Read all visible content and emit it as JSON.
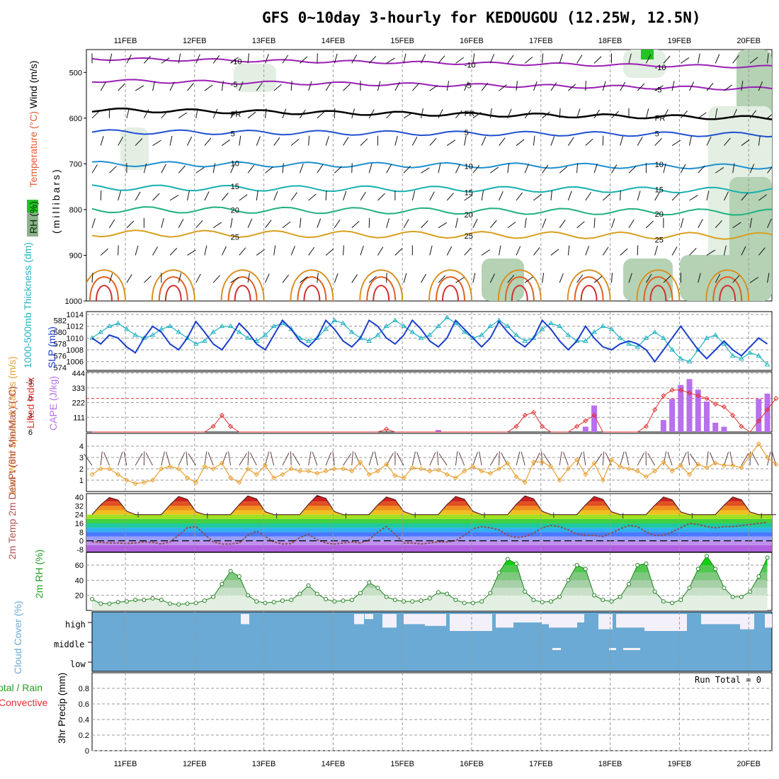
{
  "chart_data": {
    "type": "meteogram",
    "title": "GFS 0~10day 3-hourly for KEDOUGOU (12.25W, 12.5N)",
    "x_dates": [
      "11FEB",
      "12FEB",
      "13FEB",
      "14FEB",
      "15FEB",
      "16FEB",
      "17FEB",
      "18FEB",
      "19FEB",
      "20FEB"
    ],
    "colors": {
      "rh_light": "#e2efe2",
      "rh_mid": "#b5d2b5",
      "rh_dark": "#8fb08f",
      "rh_green": "#22c322",
      "slp": "#1a3ecc",
      "thickness": "#22b3c3",
      "cape": "#b870ee",
      "lifted": "#e03030",
      "wind10": "#e8a030",
      "temp_fill_top": "#8b0000",
      "dewpt": "#8a5050",
      "cloud": "#6aaad4"
    },
    "panels": {
      "upper_air": {
        "ylabel_parts": [
          "RH (%)",
          "Temperature (°C)",
          "Wind (m/s)"
        ],
        "ylabel_right": "(millibars)",
        "yticks": [
          "500",
          "600",
          "700",
          "800",
          "900",
          "1000"
        ],
        "ylim": [
          450,
          1000
        ],
        "isotherms": [
          {
            "label": "-10",
            "base_p": 470,
            "color": "#9a1fb5"
          },
          {
            "label": "-5",
            "base_p": 518,
            "color": "#9a1fb5"
          },
          {
            "label": "FR",
            "base_p": 582,
            "color": "#000000"
          },
          {
            "label": "5",
            "base_p": 630,
            "color": "#2050d0"
          },
          {
            "label": "10",
            "base_p": 700,
            "color": "#1e90d0"
          },
          {
            "label": "15",
            "base_p": 752,
            "color": "#18b0b0"
          },
          {
            "label": "20",
            "base_p": 800,
            "color": "#20b080"
          },
          {
            "label": "25",
            "base_p": 852,
            "color": "#d8a020"
          }
        ]
      },
      "slp_thickness": {
        "ylabel_left": "1000-500mb Thickness (dm)",
        "ylabel_right": "SLP (mb)",
        "left_ticks": [
          "574",
          "576",
          "578",
          "580",
          "582"
        ],
        "right_ticks": [
          "1006",
          "1008",
          "1010",
          "1012",
          "1014"
        ],
        "slp_range": [
          1005,
          1014
        ],
        "slp_mb": [
          1010,
          1009,
          1010.5,
          1010,
          1008.5,
          1007.5,
          1010,
          1012,
          1011,
          1009,
          1008,
          1010,
          1012.8,
          1011,
          1009,
          1008,
          1010,
          1012.5,
          1011,
          1009,
          1008,
          1010.5,
          1013,
          1011.5,
          1009.5,
          1008.5,
          1010,
          1013,
          1011.5,
          1009.5,
          1008.5,
          1010,
          1013,
          1012,
          1010,
          1009,
          1010.5,
          1013,
          1011.5,
          1009.5,
          1008.5,
          1010,
          1013,
          1011.5,
          1010,
          1008.5,
          1010,
          1012.8,
          1011,
          1009.5,
          1008.5,
          1010,
          1013,
          1011.5,
          1009.5,
          1008,
          1009.5,
          1012,
          1010,
          1008.5,
          1008,
          1009,
          1009.5,
          1009,
          1008,
          1006,
          1008,
          1010,
          1012,
          1010,
          1008,
          1006.5,
          1008,
          1009.5,
          1008,
          1007,
          1008.5,
          1010,
          1009
        ],
        "thickness_range": [
          574,
          583
        ],
        "thickness_dm": [
          579,
          580,
          581,
          581.5,
          580.5,
          579.5,
          579,
          579.5,
          580.5,
          581,
          580,
          579,
          578,
          578.5,
          580,
          581,
          581,
          580,
          579,
          578.5,
          579.5,
          581,
          581.5,
          580.5,
          579,
          578.5,
          579,
          580.5,
          582,
          581.5,
          580,
          579,
          578.5,
          579.5,
          581,
          582,
          581,
          580,
          579,
          579.5,
          581,
          582.5,
          581.5,
          580,
          579,
          579.5,
          581,
          582,
          581,
          579.5,
          578.5,
          579,
          580.5,
          581.5,
          581,
          579.5,
          578.5,
          578.5,
          580,
          581,
          580.5,
          579,
          578,
          577.5,
          579,
          580,
          579,
          577,
          575.5,
          575,
          577,
          579,
          579.5,
          578,
          576,
          575.5,
          576.5,
          576,
          574.5
        ]
      },
      "cape_li": {
        "ylabel_left": "Lifted Index",
        "ylabel_right": "CAPE (J/kg)",
        "left_ticks": [
          "-3",
          "0",
          "3",
          "6"
        ],
        "right_ticks": [
          "111",
          "222",
          "333",
          "444"
        ],
        "cape_bars_jkg": [
          {
            "t": 40,
            "v": 15
          },
          {
            "t": 57,
            "v": 40
          },
          {
            "t": 58,
            "v": 200
          },
          {
            "t": 66,
            "v": 90
          },
          {
            "t": 67,
            "v": 250
          },
          {
            "t": 68,
            "v": 355
          },
          {
            "t": 69,
            "v": 400
          },
          {
            "t": 70,
            "v": 320
          },
          {
            "t": 71,
            "v": 230
          },
          {
            "t": 72,
            "v": 70
          },
          {
            "t": 73,
            "v": 40
          },
          {
            "t": 77,
            "v": 250
          },
          {
            "t": 78,
            "v": 290
          }
        ],
        "lifted_index": [
          6,
          6,
          6,
          6,
          6,
          6,
          6,
          6,
          6,
          6,
          6,
          6,
          6,
          6.5,
          5,
          3,
          5,
          6,
          6,
          6,
          6,
          6,
          6,
          6,
          6,
          6,
          6,
          6,
          6,
          6,
          6,
          6,
          6,
          6,
          5.5,
          6,
          6,
          6,
          6,
          6,
          6,
          6,
          6,
          6,
          6,
          6,
          6,
          6,
          6,
          5,
          3,
          2.5,
          5,
          6,
          6,
          6,
          5,
          4,
          3,
          6,
          6,
          6,
          6,
          6,
          5,
          2,
          -0.5,
          -1.5,
          -1.5,
          -1,
          -0.5,
          0,
          1,
          1.5,
          3,
          5,
          6,
          4,
          2,
          0
        ]
      },
      "wind10": {
        "ylabel": "10m Wind Speed & Barbs (m/s)",
        "yticks": [
          "1",
          "2",
          "3",
          "4"
        ],
        "ylim": [
          0,
          5
        ],
        "speed_ms": [
          1.5,
          2,
          2,
          1.5,
          1,
          0.7,
          0.8,
          1,
          2,
          2.2,
          2,
          1.2,
          0.8,
          2.2,
          2,
          2.5,
          1.2,
          0.8,
          2,
          1.5,
          2.3,
          1.2,
          1.5,
          2,
          1.8,
          1.8,
          1.6,
          1.8,
          2,
          2,
          1.8,
          2.6,
          1.5,
          1.8,
          2.4,
          1.4,
          1.2,
          2.1,
          2,
          1.8,
          1.9,
          1.5,
          1.2,
          1.8,
          2.2,
          1.8,
          1.6,
          2,
          2.5,
          1.3,
          0.8,
          2.6,
          2.6,
          2.2,
          1,
          2,
          2.8,
          1.5,
          2.5,
          1,
          2.8,
          2.2,
          2,
          1.8,
          1.3,
          1.8,
          2.6,
          1.8,
          2.3,
          1.5,
          2.4,
          2.1,
          2.5,
          2.3,
          2.3,
          2.1,
          3.2,
          4.2,
          3,
          2.4
        ]
      },
      "temp2m": {
        "ylabel": "2m Temp 2m DewPt (6hr Min/Max) (°C)",
        "yticks": [
          "-8",
          "0",
          "8",
          "16",
          "24",
          "32",
          "40"
        ],
        "ylim": [
          -10,
          42
        ],
        "max_c": [
          40,
          41,
          41.5,
          42,
          40.5,
          41,
          41.5,
          41,
          40.5,
          40.5
        ],
        "min_c": [
          24,
          23,
          23,
          23,
          23.5,
          23.5,
          23.5,
          23,
          23,
          23
        ],
        "dewpt_c": [
          -1,
          -1.5,
          -2,
          -2,
          -2.5,
          -2,
          -1,
          -1.5,
          -3,
          -1,
          5,
          12,
          13,
          6,
          -1,
          -3,
          -3,
          -2,
          5,
          9,
          4,
          -1,
          -3,
          -2.5,
          3,
          6,
          1,
          -2,
          -3,
          -2,
          -1,
          -2,
          1,
          8,
          13,
          6,
          -2,
          -2,
          -3,
          -2,
          -1,
          -1,
          0,
          5,
          11,
          13,
          12,
          10,
          5,
          3,
          4,
          7,
          12,
          14,
          13,
          10,
          6,
          5,
          5,
          4,
          7,
          11,
          14,
          13,
          8,
          5,
          5,
          8,
          12,
          16,
          15,
          13,
          12,
          13,
          13,
          14,
          15,
          16,
          17
        ]
      },
      "rh2m": {
        "ylabel": "2m RH (%)",
        "yticks": [
          "20",
          "40",
          "60"
        ],
        "ylim": [
          0,
          75
        ],
        "rh_pct": [
          15,
          9,
          9,
          11,
          12,
          14,
          14,
          16,
          14,
          9,
          8,
          9,
          10,
          13,
          18,
          35,
          52,
          45,
          20,
          12,
          10,
          11,
          13,
          14,
          22,
          33,
          22,
          15,
          12,
          13,
          14,
          23,
          37,
          30,
          18,
          14,
          12,
          12,
          13,
          16,
          24,
          22,
          14,
          10,
          10,
          12,
          23,
          50,
          68,
          62,
          25,
          14,
          11,
          12,
          18,
          40,
          60,
          55,
          20,
          14,
          12,
          18,
          35,
          60,
          62,
          25,
          12,
          10,
          14,
          30,
          55,
          72,
          55,
          30,
          18,
          18,
          25,
          45,
          70
        ]
      },
      "cloud": {
        "ylabel": "Cloud Cover (%)",
        "level_labels": [
          "high",
          "middle",
          "low"
        ]
      },
      "precip": {
        "ylabel_lines": [
          "Total / Rain",
          "Convective"
        ],
        "ylabel_right": "3hr Precip (mm)",
        "yticks": [
          "0",
          "0.2",
          "0.4",
          "0.6",
          "0.8"
        ],
        "ylim": [
          0,
          1
        ],
        "run_total": "Run Total = 0"
      }
    }
  }
}
